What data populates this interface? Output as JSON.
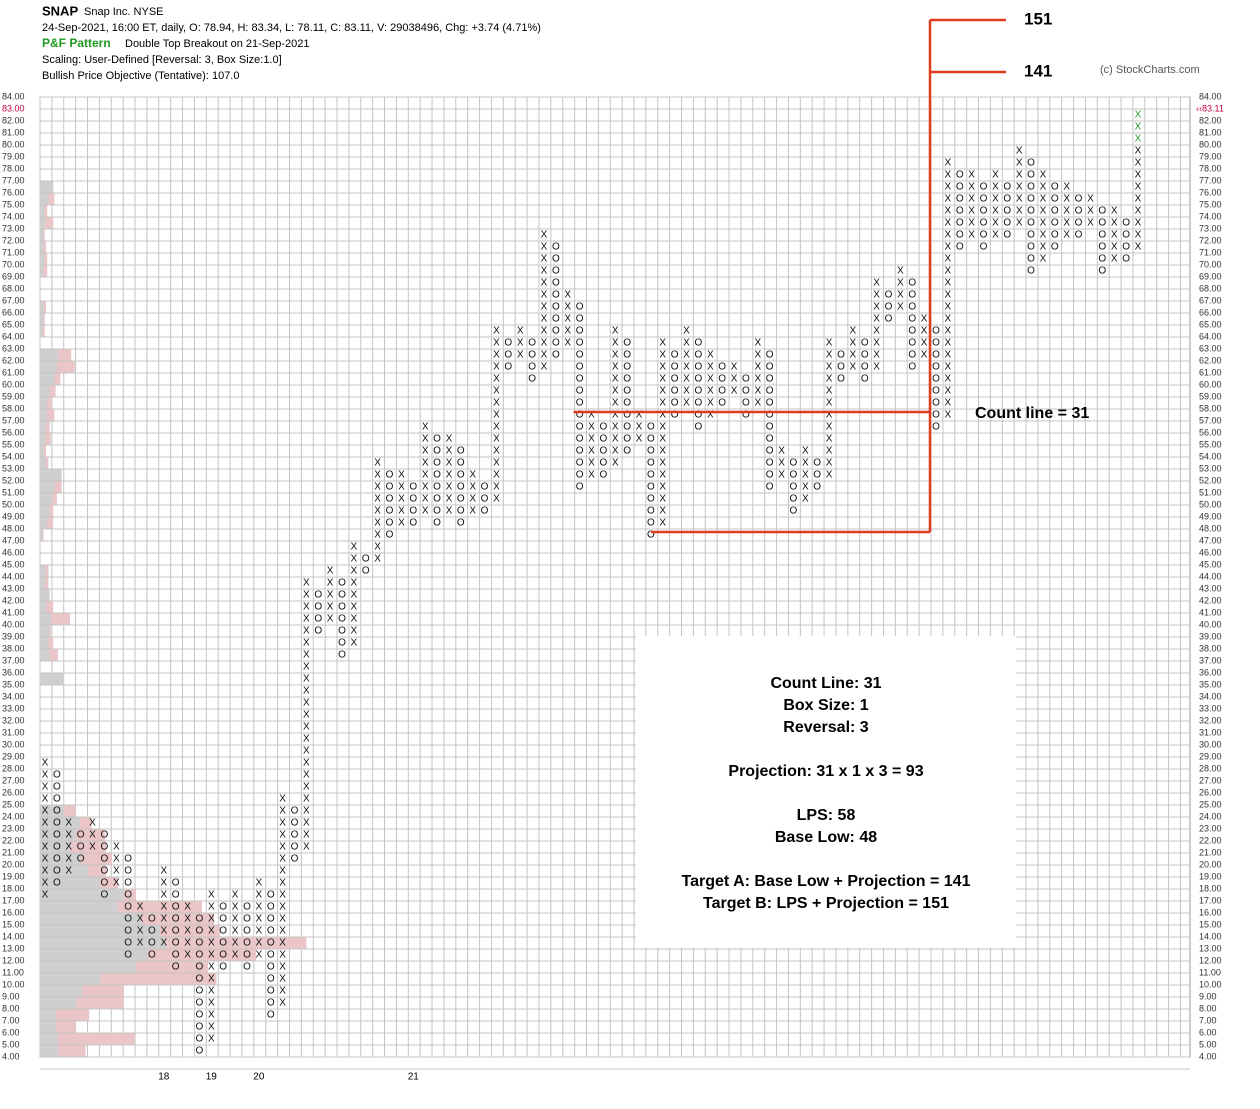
{
  "chart_data": {
    "type": "pnf",
    "symbol": "SNAP",
    "company": "Snap Inc.  NYSE",
    "quote": "24-Sep-2021, 16:00 ET, daily, O: 78.94, H: 83.34, L: 78.11, C: 83.11, V: 29038496, Chg: +3.74 (4.71%)",
    "pattern_label": "P&F Pattern",
    "pattern": "Double Top Breakout on 21-Sep-2021",
    "scaling": "Scaling: User-Defined [Reversal: 3, Box Size:1.0]",
    "objective": "Bullish Price Objective (Tentative): 107.0",
    "copyright": "(c) StockCharts.com",
    "ylim": [
      4,
      84
    ],
    "yticks": [
      {
        "value": 84,
        "label": "84.00"
      },
      {
        "value": 83,
        "label": "83.00"
      },
      {
        "value": 82,
        "label": "82.00"
      },
      {
        "value": 81,
        "label": "81.00"
      },
      {
        "value": 80,
        "label": "80.00"
      },
      {
        "value": 79,
        "label": "79.00"
      },
      {
        "value": 78,
        "label": "78.00"
      },
      {
        "value": 77,
        "label": "77.00"
      },
      {
        "value": 76,
        "label": "76.00"
      },
      {
        "value": 75,
        "label": "75.00"
      },
      {
        "value": 74,
        "label": "74.00"
      },
      {
        "value": 73,
        "label": "73.00"
      },
      {
        "value": 72,
        "label": "72.00"
      },
      {
        "value": 71,
        "label": "71.00"
      },
      {
        "value": 70,
        "label": "70.00"
      },
      {
        "value": 69,
        "label": "69.00"
      },
      {
        "value": 68,
        "label": "68.00"
      },
      {
        "value": 67,
        "label": "67.00"
      },
      {
        "value": 66,
        "label": "66.00"
      },
      {
        "value": 65,
        "label": "65.00"
      },
      {
        "value": 64,
        "label": "64.00"
      },
      {
        "value": 63,
        "label": "63.00"
      },
      {
        "value": 62,
        "label": "62.00"
      },
      {
        "value": 61,
        "label": "61.00"
      },
      {
        "value": 60,
        "label": "60.00"
      },
      {
        "value": 59,
        "label": "59.00"
      },
      {
        "value": 58,
        "label": "58.00"
      },
      {
        "value": 57,
        "label": "57.00"
      },
      {
        "value": 56,
        "label": "56.00"
      },
      {
        "value": 55,
        "label": "55.00"
      },
      {
        "value": 54,
        "label": "54.00"
      },
      {
        "value": 53,
        "label": "53.00"
      },
      {
        "value": 52,
        "label": "52.00"
      },
      {
        "value": 51,
        "label": "51.00"
      },
      {
        "value": 50,
        "label": "50.00"
      },
      {
        "value": 49,
        "label": "49.00"
      },
      {
        "value": 48,
        "label": "48.00"
      },
      {
        "value": 47,
        "label": "47.00"
      },
      {
        "value": 46,
        "label": "46.00"
      },
      {
        "value": 45,
        "label": "45.00"
      },
      {
        "value": 44,
        "label": "44.00"
      },
      {
        "value": 43,
        "label": "43.00"
      },
      {
        "value": 42,
        "label": "42.00"
      },
      {
        "value": 41,
        "label": "41.00"
      },
      {
        "value": 40,
        "label": "40.00"
      },
      {
        "value": 39,
        "label": "39.00"
      },
      {
        "value": 38,
        "label": "38.00"
      },
      {
        "value": 37,
        "label": "37.00"
      },
      {
        "value": 36,
        "label": "36.00"
      },
      {
        "value": 35,
        "label": "35.00"
      },
      {
        "value": 34,
        "label": "34.00"
      },
      {
        "value": 33,
        "label": "33.00"
      },
      {
        "value": 32,
        "label": "32.00"
      },
      {
        "value": 31,
        "label": "31.00"
      },
      {
        "value": 30,
        "label": "30.00"
      },
      {
        "value": 29,
        "label": "29.00"
      },
      {
        "value": 28,
        "label": "28.00"
      },
      {
        "value": 27,
        "label": "27.00"
      },
      {
        "value": 26,
        "label": "26.00"
      },
      {
        "value": 25,
        "label": "25.00"
      },
      {
        "value": 24,
        "label": "24.00"
      },
      {
        "value": 23,
        "label": "23.00"
      },
      {
        "value": 22,
        "label": "22.00"
      },
      {
        "value": 21,
        "label": "21.00"
      },
      {
        "value": 20,
        "label": "20.00"
      },
      {
        "value": 19,
        "label": "19.00"
      },
      {
        "value": 18,
        "label": "18.00"
      },
      {
        "value": 17,
        "label": "17.00"
      },
      {
        "value": 16,
        "label": "16.00"
      },
      {
        "value": 15,
        "label": "15.00"
      },
      {
        "value": 14,
        "label": "14.00"
      },
      {
        "value": 13,
        "label": "13.00"
      },
      {
        "value": 12,
        "label": "12.00"
      },
      {
        "value": 11,
        "label": "11.00"
      },
      {
        "value": 10,
        "label": "10.00"
      },
      {
        "value": 9,
        "label": "9.00"
      },
      {
        "value": 8,
        "label": "8.00"
      },
      {
        "value": 7,
        "label": "7.00"
      },
      {
        "value": 6,
        "label": "6.00"
      },
      {
        "value": 5,
        "label": "5.00"
      },
      {
        "value": 4,
        "label": "4.00"
      }
    ],
    "last_box": 83,
    "last_box_color": "#c0003a",
    "last_price": {
      "value": 83.11,
      "label": "‹‹83.11"
    },
    "new_boxes": 3,
    "new_color": "#2a9d2a",
    "columns": [
      {
        "t": "X",
        "lo": 18,
        "hi": 29
      },
      {
        "t": "O",
        "lo": 19,
        "hi": 28
      },
      {
        "t": "X",
        "lo": 20,
        "hi": 24
      },
      {
        "t": "O",
        "lo": 21,
        "hi": 23
      },
      {
        "t": "X",
        "lo": 22,
        "hi": 24
      },
      {
        "t": "O",
        "lo": 18,
        "hi": 23
      },
      {
        "t": "X",
        "lo": 19,
        "hi": 22
      },
      {
        "t": "O",
        "lo": 13,
        "hi": 21
      },
      {
        "t": "X",
        "lo": 14,
        "hi": 17
      },
      {
        "t": "O",
        "lo": 13,
        "hi": 16
      },
      {
        "t": "X",
        "lo": 14,
        "hi": 20
      },
      {
        "t": "O",
        "lo": 12,
        "hi": 19
      },
      {
        "t": "X",
        "lo": 13,
        "hi": 17
      },
      {
        "t": "O",
        "lo": 5,
        "hi": 16
      },
      {
        "t": "X",
        "lo": 6,
        "hi": 18
      },
      {
        "t": "O",
        "lo": 12,
        "hi": 17
      },
      {
        "t": "X",
        "lo": 13,
        "hi": 18
      },
      {
        "t": "O",
        "lo": 12,
        "hi": 17
      },
      {
        "t": "X",
        "lo": 13,
        "hi": 19
      },
      {
        "t": "O",
        "lo": 8,
        "hi": 18
      },
      {
        "t": "X",
        "lo": 9,
        "hi": 26
      },
      {
        "t": "O",
        "lo": 21,
        "hi": 25
      },
      {
        "t": "X",
        "lo": 22,
        "hi": 44
      },
      {
        "t": "O",
        "lo": 40,
        "hi": 43
      },
      {
        "t": "X",
        "lo": 41,
        "hi": 45
      },
      {
        "t": "O",
        "lo": 38,
        "hi": 44
      },
      {
        "t": "X",
        "lo": 39,
        "hi": 47
      },
      {
        "t": "O",
        "lo": 45,
        "hi": 46
      },
      {
        "t": "X",
        "lo": 46,
        "hi": 54
      },
      {
        "t": "O",
        "lo": 48,
        "hi": 53
      },
      {
        "t": "X",
        "lo": 49,
        "hi": 53
      },
      {
        "t": "O",
        "lo": 49,
        "hi": 52
      },
      {
        "t": "X",
        "lo": 50,
        "hi": 57
      },
      {
        "t": "O",
        "lo": 49,
        "hi": 56
      },
      {
        "t": "X",
        "lo": 50,
        "hi": 56
      },
      {
        "t": "O",
        "lo": 49,
        "hi": 55
      },
      {
        "t": "X",
        "lo": 50,
        "hi": 53
      },
      {
        "t": "O",
        "lo": 50,
        "hi": 52
      },
      {
        "t": "X",
        "lo": 51,
        "hi": 65
      },
      {
        "t": "O",
        "lo": 62,
        "hi": 64
      },
      {
        "t": "X",
        "lo": 63,
        "hi": 65
      },
      {
        "t": "O",
        "lo": 61,
        "hi": 64
      },
      {
        "t": "X",
        "lo": 62,
        "hi": 73
      },
      {
        "t": "O",
        "lo": 63,
        "hi": 72
      },
      {
        "t": "X",
        "lo": 64,
        "hi": 68
      },
      {
        "t": "O",
        "lo": 52,
        "hi": 67
      },
      {
        "t": "X",
        "lo": 53,
        "hi": 58
      },
      {
        "t": "O",
        "lo": 53,
        "hi": 57
      },
      {
        "t": "X",
        "lo": 54,
        "hi": 65
      },
      {
        "t": "O",
        "lo": 55,
        "hi": 64
      },
      {
        "t": "X",
        "lo": 56,
        "hi": 58
      },
      {
        "t": "O",
        "lo": 48,
        "hi": 57
      },
      {
        "t": "X",
        "lo": 49,
        "hi": 64
      },
      {
        "t": "O",
        "lo": 58,
        "hi": 63
      },
      {
        "t": "X",
        "lo": 59,
        "hi": 65
      },
      {
        "t": "O",
        "lo": 57,
        "hi": 64
      },
      {
        "t": "X",
        "lo": 58,
        "hi": 63
      },
      {
        "t": "O",
        "lo": 59,
        "hi": 62
      },
      {
        "t": "X",
        "lo": 60,
        "hi": 62
      },
      {
        "t": "O",
        "lo": 58,
        "hi": 61
      },
      {
        "t": "X",
        "lo": 59,
        "hi": 64
      },
      {
        "t": "O",
        "lo": 52,
        "hi": 63
      },
      {
        "t": "X",
        "lo": 53,
        "hi": 55
      },
      {
        "t": "O",
        "lo": 50,
        "hi": 54
      },
      {
        "t": "X",
        "lo": 51,
        "hi": 55
      },
      {
        "t": "O",
        "lo": 52,
        "hi": 54
      },
      {
        "t": "X",
        "lo": 53,
        "hi": 64
      },
      {
        "t": "O",
        "lo": 61,
        "hi": 63
      },
      {
        "t": "X",
        "lo": 62,
        "hi": 65
      },
      {
        "t": "O",
        "lo": 61,
        "hi": 64
      },
      {
        "t": "X",
        "lo": 62,
        "hi": 69
      },
      {
        "t": "O",
        "lo": 66,
        "hi": 68
      },
      {
        "t": "X",
        "lo": 67,
        "hi": 70
      },
      {
        "t": "O",
        "lo": 62,
        "hi": 69
      },
      {
        "t": "X",
        "lo": 63,
        "hi": 66
      },
      {
        "t": "O",
        "lo": 57,
        "hi": 65
      },
      {
        "t": "X",
        "lo": 58,
        "hi": 79
      },
      {
        "t": "O",
        "lo": 72,
        "hi": 78
      },
      {
        "t": "X",
        "lo": 73,
        "hi": 78
      },
      {
        "t": "O",
        "lo": 72,
        "hi": 77
      },
      {
        "t": "X",
        "lo": 73,
        "hi": 78
      },
      {
        "t": "O",
        "lo": 73,
        "hi": 77
      },
      {
        "t": "X",
        "lo": 74,
        "hi": 80
      },
      {
        "t": "O",
        "lo": 70,
        "hi": 79
      },
      {
        "t": "X",
        "lo": 71,
        "hi": 78
      },
      {
        "t": "O",
        "lo": 72,
        "hi": 77
      },
      {
        "t": "X",
        "lo": 73,
        "hi": 77
      },
      {
        "t": "O",
        "lo": 73,
        "hi": 76
      },
      {
        "t": "X",
        "lo": 74,
        "hi": 76
      },
      {
        "t": "O",
        "lo": 70,
        "hi": 75
      },
      {
        "t": "X",
        "lo": 71,
        "hi": 75
      },
      {
        "t": "O",
        "lo": 71,
        "hi": 74
      },
      {
        "t": "X",
        "lo": 72,
        "hi": 83
      }
    ],
    "year_markers": [
      {
        "label": "18",
        "column": 10
      },
      {
        "label": "19",
        "column": 14
      },
      {
        "label": "20",
        "column": 18
      },
      {
        "label": "21",
        "column": 31
      }
    ],
    "volume_by_price": {
      "prices": [
        77,
        76,
        75,
        74,
        73,
        72,
        71,
        70,
        67,
        66,
        65,
        63,
        62,
        61,
        60,
        59,
        58,
        57,
        56,
        55,
        54,
        53,
        52,
        51,
        50,
        49,
        48,
        45,
        44,
        43,
        42,
        41,
        40,
        39,
        38,
        36,
        25,
        24,
        23,
        22,
        21,
        20,
        19,
        18,
        17,
        16,
        15,
        14,
        13,
        12,
        11,
        10,
        9,
        8,
        7,
        6,
        5
      ],
      "total": [
        22,
        24,
        12,
        22,
        8,
        10,
        12,
        12,
        10,
        8,
        8,
        52,
        58,
        34,
        26,
        20,
        24,
        16,
        18,
        10,
        14,
        36,
        36,
        28,
        22,
        22,
        6,
        14,
        14,
        16,
        22,
        50,
        18,
        22,
        30,
        40,
        60,
        86,
        108,
        110,
        120,
        110,
        130,
        160,
        270,
        290,
        300,
        444,
        360,
        280,
        294,
        140,
        140,
        82,
        60,
        158,
        76
      ],
      "up": [
        22,
        14,
        8,
        8,
        6,
        6,
        8,
        6,
        6,
        6,
        4,
        30,
        28,
        24,
        16,
        12,
        12,
        10,
        8,
        6,
        10,
        36,
        24,
        20,
        16,
        12,
        4,
        10,
        8,
        16,
        10,
        18,
        16,
        14,
        16,
        40,
        40,
        66,
        60,
        50,
        68,
        80,
        100,
        140,
        130,
        170,
        200,
        210,
        180,
        160,
        100,
        70,
        60,
        26,
        26,
        30,
        30
      ],
      "up_color": "#cfcfcf",
      "total_color": "#eac6c8"
    },
    "count_line": {
      "price": 58,
      "from_column": 45,
      "to_column": 75,
      "base_low": 48,
      "base_column": 51,
      "label": "Count line = 31",
      "color": "#e03b1f"
    },
    "targets": [
      151,
      141
    ],
    "notes": [
      [
        "Count Line: 31",
        "Box Size: 1",
        "Reversal: 3"
      ],
      [
        "Projection: 31 x 1 x 3 = 93"
      ],
      [
        "LPS: 58",
        "Base Low: 48"
      ],
      [
        "Target A: Base Low + Projection = 141",
        "Target B: LPS + Projection = 151"
      ]
    ]
  }
}
